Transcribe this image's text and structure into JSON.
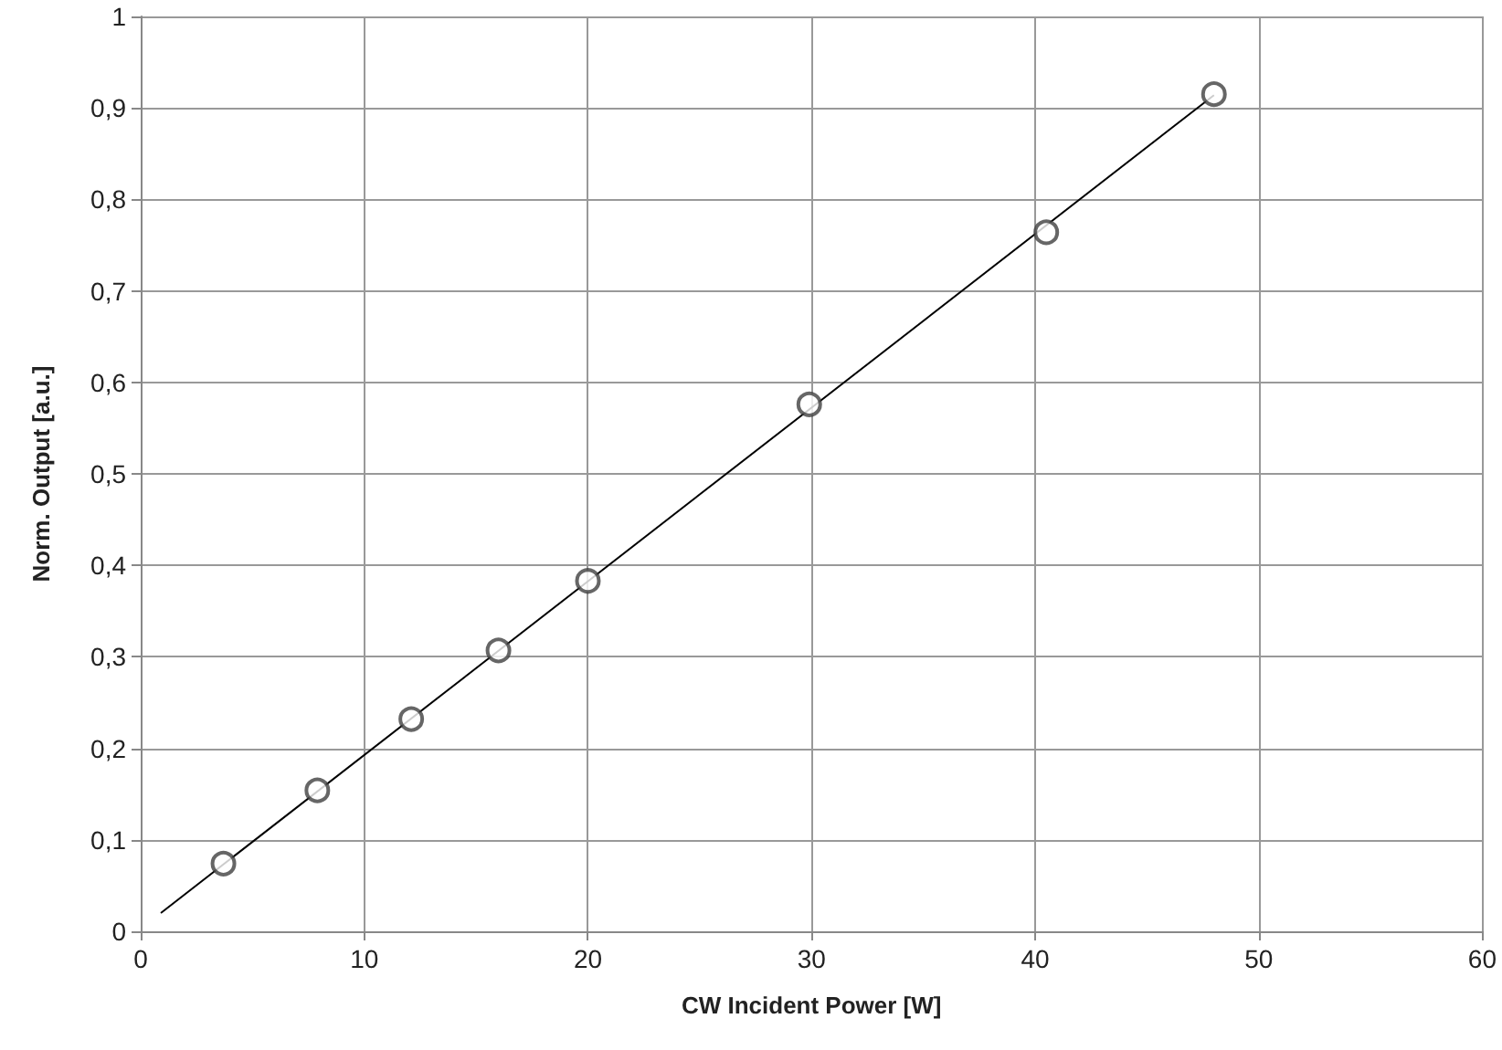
{
  "chart_data": {
    "type": "scatter",
    "xlabel": "CW Incident Power [W]",
    "ylabel": "Norm. Output [a.u.]",
    "xlim": [
      0,
      60
    ],
    "xticks": [
      0,
      10,
      20,
      30,
      40,
      50,
      60
    ],
    "ylim": [
      0,
      1
    ],
    "yticks": [
      0,
      {
        "value": 0.1,
        "label": "0,1"
      },
      {
        "value": 0.2,
        "label": "0,2"
      },
      {
        "value": 0.3,
        "label": "0,3"
      },
      {
        "value": 0.4,
        "label": "0,4"
      },
      {
        "value": 0.5,
        "label": "0,5"
      },
      {
        "value": 0.6,
        "label": "0,6"
      },
      {
        "value": 0.7,
        "label": "0,7"
      },
      {
        "value": 0.8,
        "label": "0,8"
      },
      {
        "value": 0.9,
        "label": "0,9"
      },
      1
    ],
    "grid": true,
    "marker": "circle",
    "series": [
      {
        "color": "#404040",
        "x": [
          3.7,
          7.9,
          12.1,
          16.0,
          20.0,
          29.9,
          40.5,
          48.0
        ],
        "values": [
          0.074,
          0.154,
          0.232,
          0.307,
          0.383,
          0.576,
          0.764,
          0.915
        ]
      },
      {
        "type": "line",
        "color": "#000000",
        "marker": "none",
        "x": [
          0.9,
          48.0
        ],
        "values": [
          0.02,
          0.914
        ]
      }
    ]
  }
}
